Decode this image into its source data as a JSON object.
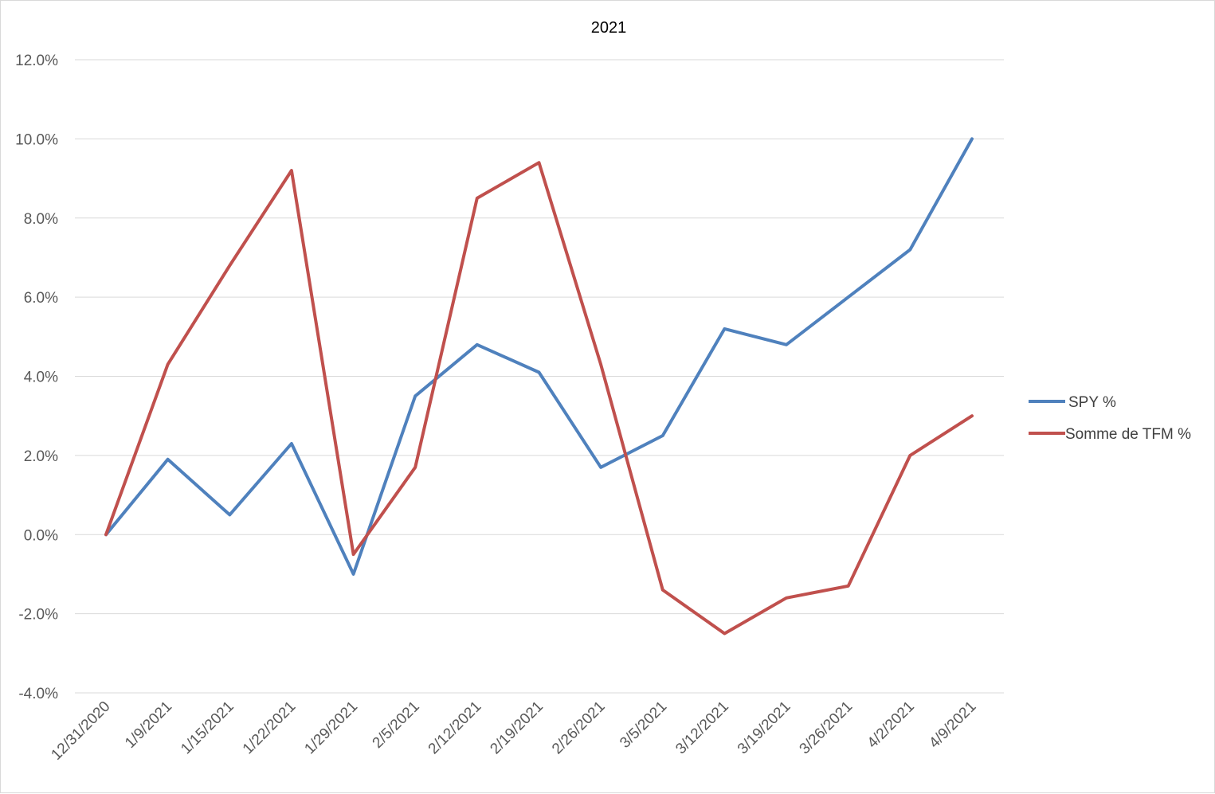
{
  "chart_data": {
    "type": "line",
    "title": "2021",
    "xlabel": "",
    "ylabel": "",
    "categories": [
      "12/31/2020",
      "1/9/2021",
      "1/15/2021",
      "1/22/2021",
      "1/29/2021",
      "2/5/2021",
      "2/12/2021",
      "2/19/2021",
      "2/26/2021",
      "3/5/2021",
      "3/12/2021",
      "3/19/2021",
      "3/26/2021",
      "4/2/2021",
      "4/9/2021"
    ],
    "y_ticks": [
      "-4.0%",
      "-2.0%",
      "0.0%",
      "2.0%",
      "4.0%",
      "6.0%",
      "8.0%",
      "10.0%",
      "12.0%"
    ],
    "ylim": [
      -0.04,
      0.12
    ],
    "series": [
      {
        "name": "SPY %",
        "color": "#4f81bd",
        "values": [
          0.0,
          0.019,
          0.005,
          0.023,
          -0.01,
          0.035,
          0.048,
          0.041,
          0.017,
          0.025,
          0.052,
          0.048,
          0.06,
          0.072,
          0.1
        ]
      },
      {
        "name": "Somme de TFM %",
        "color": "#c0504d",
        "values": [
          0.0,
          0.043,
          0.068,
          0.092,
          -0.005,
          0.017,
          0.085,
          0.094,
          0.043,
          -0.014,
          -0.025,
          -0.016,
          -0.013,
          0.02,
          0.03
        ]
      }
    ],
    "grid": true,
    "legend_position": "right"
  }
}
